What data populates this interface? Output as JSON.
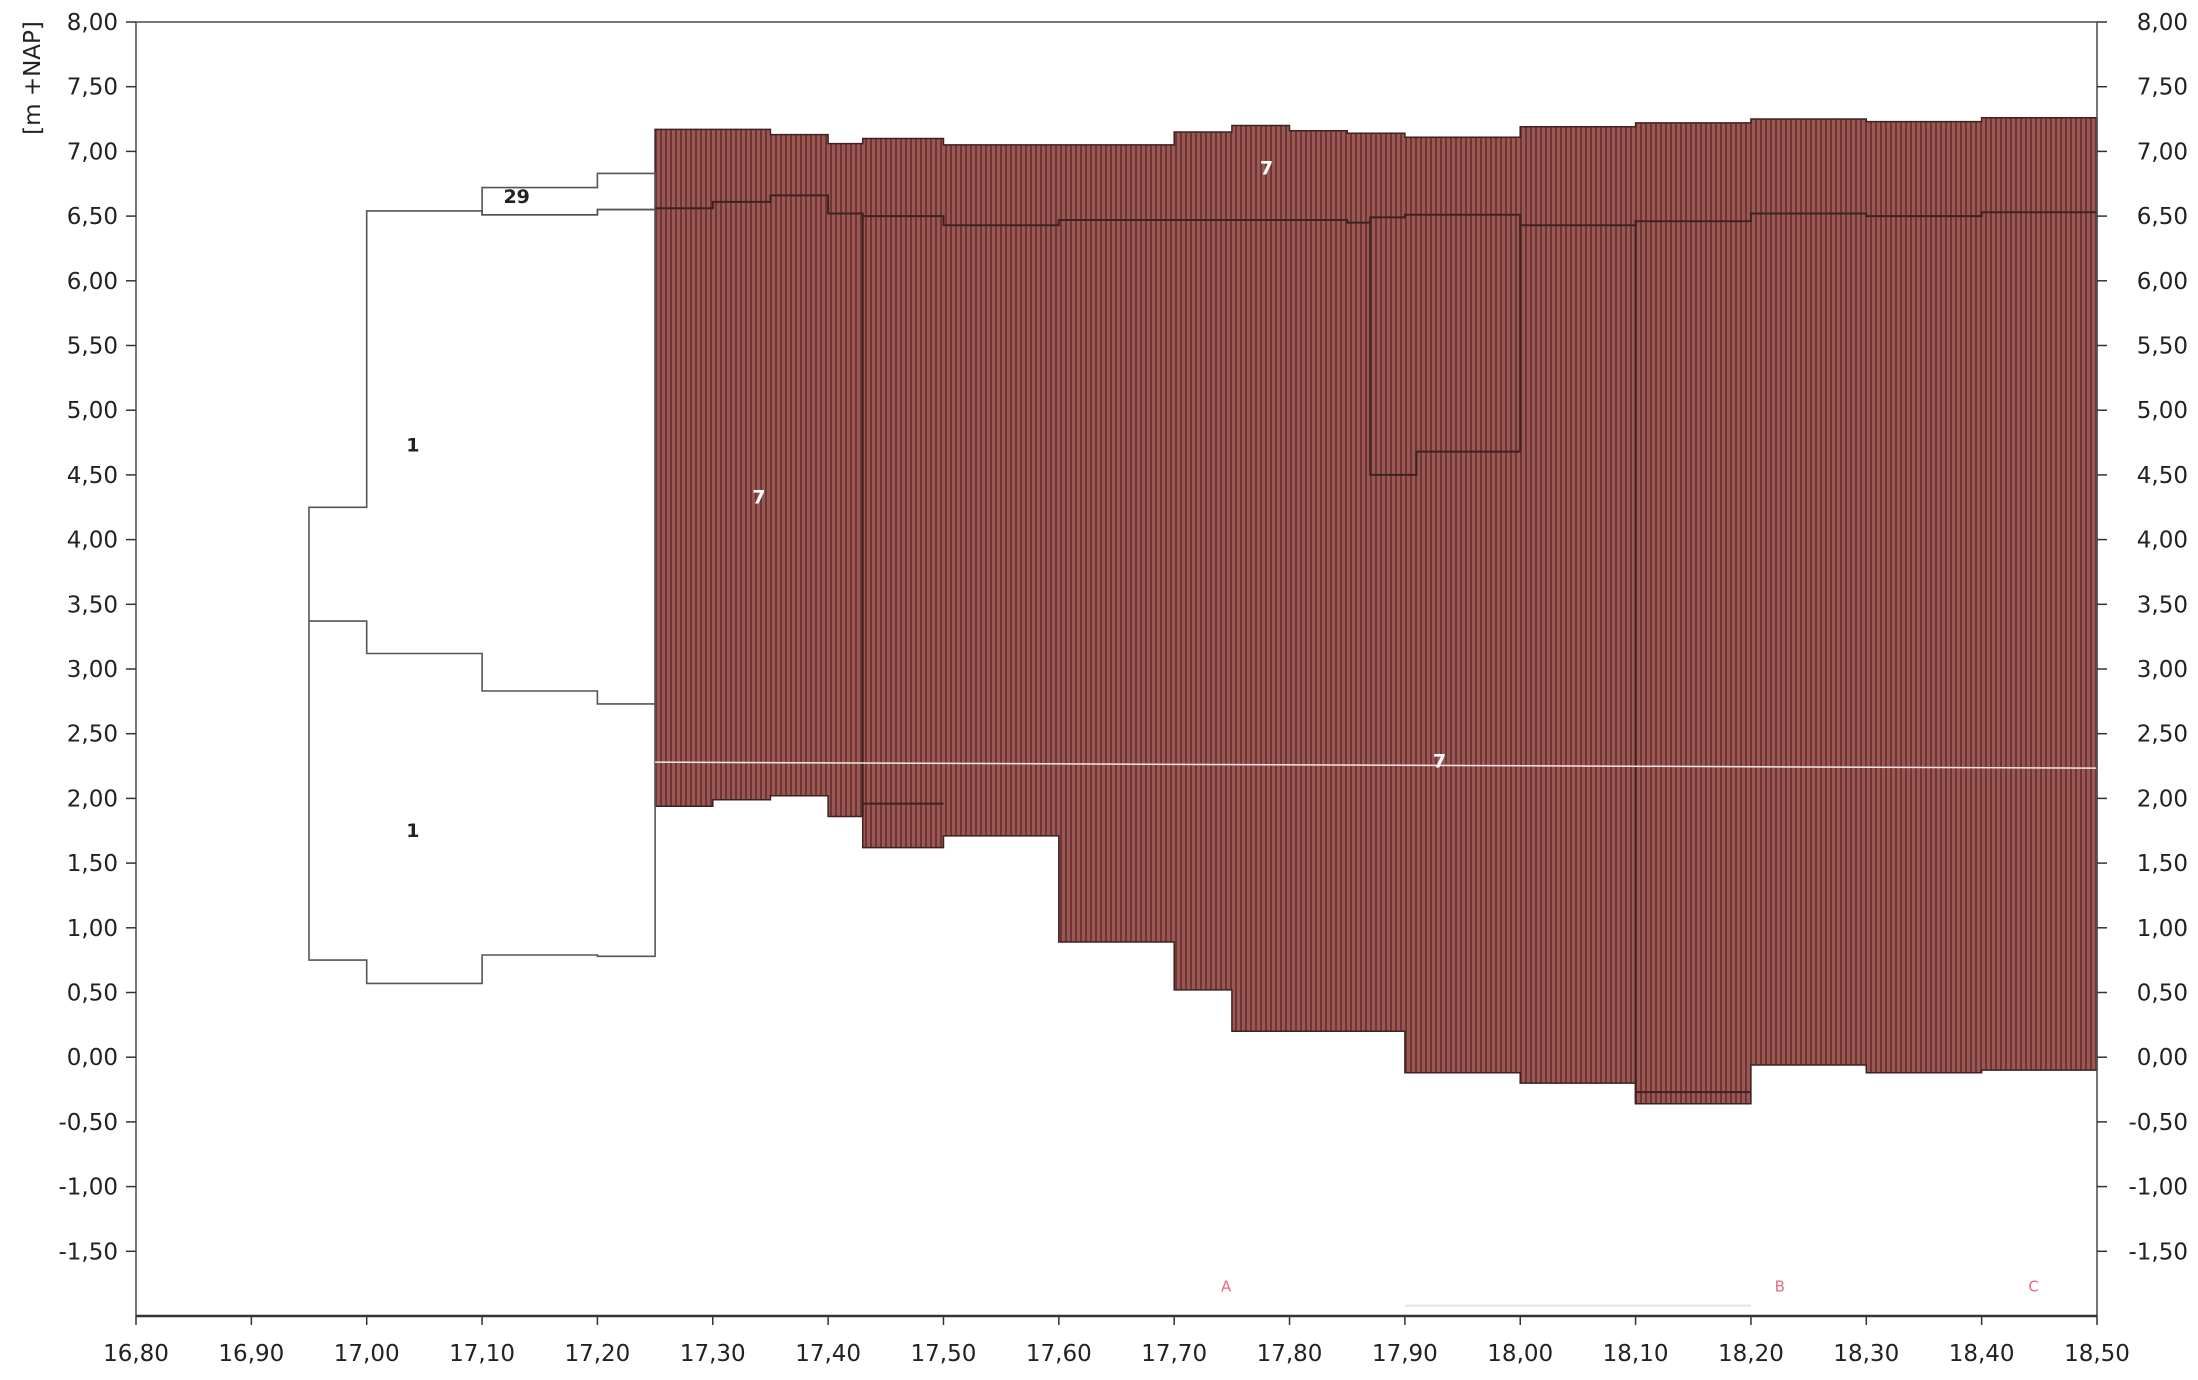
{
  "chart_data": {
    "type": "area",
    "title": "",
    "xlabel": "",
    "ylabel": "[m +NAP]",
    "xlim": [
      16.8,
      18.5
    ],
    "ylim": [
      -2.0,
      8.0
    ],
    "grid": false,
    "x_ticks": [
      "16,80",
      "16,90",
      "17,00",
      "17,10",
      "17,20",
      "17,30",
      "17,40",
      "17,50",
      "17,60",
      "17,70",
      "17,80",
      "17,90",
      "18,00",
      "18,10",
      "18,20",
      "18,30",
      "18,40",
      "18,50"
    ],
    "y_ticks": [
      "8,00",
      "7,50",
      "7,00",
      "6,50",
      "6,00",
      "5,50",
      "5,00",
      "4,50",
      "4,00",
      "3,50",
      "3,00",
      "2,50",
      "2,00",
      "1,50",
      "1,00",
      "0,50",
      "0,00",
      "-0,50",
      "-1,00",
      "-1,50"
    ],
    "colors": {
      "layer_7": "#8f4d4a",
      "layer_7_line": "#3d2222",
      "outline": "#555555",
      "marker": "#e86a7a",
      "axis": "#555555"
    },
    "series": [
      {
        "name": "7",
        "role": "filled",
        "top": [
          [
            17.25,
            7.17
          ],
          [
            17.3,
            7.17
          ],
          [
            17.35,
            7.13
          ],
          [
            17.4,
            7.06
          ],
          [
            17.43,
            7.1
          ],
          [
            17.5,
            7.05
          ],
          [
            17.6,
            7.05
          ],
          [
            17.7,
            7.15
          ],
          [
            17.75,
            7.2
          ],
          [
            17.8,
            7.16
          ],
          [
            17.85,
            7.14
          ],
          [
            17.9,
            7.11
          ],
          [
            17.95,
            7.11
          ],
          [
            18.0,
            7.19
          ],
          [
            18.05,
            7.19
          ],
          [
            18.1,
            7.22
          ],
          [
            18.2,
            7.25
          ],
          [
            18.3,
            7.23
          ],
          [
            18.4,
            7.26
          ],
          [
            18.5,
            7.26
          ]
        ],
        "bottom": [
          [
            17.25,
            1.94
          ],
          [
            17.3,
            1.99
          ],
          [
            17.35,
            2.02
          ],
          [
            17.4,
            1.86
          ],
          [
            17.43,
            1.62
          ],
          [
            17.5,
            1.71
          ],
          [
            17.6,
            0.89
          ],
          [
            17.7,
            0.52
          ],
          [
            17.75,
            0.2
          ],
          [
            17.8,
            0.2
          ],
          [
            17.85,
            0.2
          ],
          [
            17.9,
            -0.12
          ],
          [
            17.95,
            -0.12
          ],
          [
            18.0,
            -0.2
          ],
          [
            18.05,
            -0.2
          ],
          [
            18.1,
            -0.36
          ],
          [
            18.2,
            -0.06
          ],
          [
            18.3,
            -0.12
          ],
          [
            18.4,
            -0.1
          ],
          [
            18.5,
            -0.1
          ]
        ]
      },
      {
        "name": "1",
        "role": "outline",
        "top": [
          [
            16.95,
            4.25
          ],
          [
            17.0,
            6.54
          ],
          [
            17.05,
            6.54
          ],
          [
            17.1,
            6.51
          ],
          [
            17.15,
            6.51
          ],
          [
            17.2,
            6.55
          ],
          [
            17.25,
            6.55
          ]
        ],
        "bottom": [
          [
            16.95,
            0.75
          ],
          [
            17.0,
            0.57
          ],
          [
            17.05,
            0.57
          ],
          [
            17.1,
            0.79
          ],
          [
            17.15,
            0.79
          ],
          [
            17.2,
            0.78
          ],
          [
            17.25,
            0.78
          ]
        ],
        "divider": [
          [
            16.95,
            3.37
          ],
          [
            17.0,
            3.12
          ],
          [
            17.05,
            3.12
          ],
          [
            17.1,
            2.83
          ],
          [
            17.15,
            2.83
          ],
          [
            17.2,
            2.73
          ],
          [
            17.25,
            2.73
          ]
        ]
      },
      {
        "name": "29",
        "role": "outline",
        "top": [
          [
            17.1,
            6.72
          ],
          [
            17.2,
            6.83
          ],
          [
            17.25,
            6.83
          ]
        ],
        "bottom": [
          [
            17.1,
            6.51
          ],
          [
            17.2,
            6.55
          ],
          [
            17.25,
            6.55
          ]
        ]
      }
    ],
    "inner_lines": [
      {
        "points": [
          [
            17.25,
            6.56
          ],
          [
            17.3,
            6.56
          ],
          [
            17.3,
            6.61
          ],
          [
            17.35,
            6.61
          ],
          [
            17.35,
            6.66
          ],
          [
            17.4,
            6.66
          ],
          [
            17.4,
            6.52
          ],
          [
            17.43,
            6.52
          ],
          [
            17.43,
            6.5
          ],
          [
            17.5,
            6.5
          ],
          [
            17.5,
            6.43
          ],
          [
            17.6,
            6.43
          ],
          [
            17.6,
            6.47
          ],
          [
            17.85,
            6.47
          ],
          [
            17.85,
            6.45
          ],
          [
            17.87,
            6.45
          ],
          [
            17.87,
            6.49
          ],
          [
            17.9,
            6.49
          ],
          [
            17.9,
            6.51
          ],
          [
            18.0,
            6.51
          ],
          [
            18.0,
            6.43
          ],
          [
            18.1,
            6.43
          ],
          [
            18.1,
            6.46
          ],
          [
            18.2,
            6.46
          ],
          [
            18.2,
            6.52
          ],
          [
            18.3,
            6.52
          ],
          [
            18.3,
            6.5
          ],
          [
            18.4,
            6.5
          ],
          [
            18.4,
            6.53
          ],
          [
            18.5,
            6.53
          ]
        ]
      },
      {
        "points": [
          [
            17.87,
            6.47
          ],
          [
            17.87,
            4.5
          ],
          [
            17.91,
            4.5
          ],
          [
            17.91,
            4.68
          ],
          [
            18.0,
            4.68
          ],
          [
            18.0,
            6.47
          ]
        ]
      },
      {
        "points": [
          [
            17.43,
            6.5
          ],
          [
            17.43,
            1.86
          ]
        ]
      },
      {
        "points": [
          [
            17.43,
            1.96
          ],
          [
            17.5,
            1.96
          ]
        ]
      },
      {
        "points": [
          [
            18.1,
            6.47
          ],
          [
            18.1,
            -0.36
          ]
        ]
      },
      {
        "points": [
          [
            18.1,
            -0.27
          ],
          [
            18.2,
            -0.27
          ]
        ]
      }
    ],
    "band_line": 2.28,
    "labels": [
      {
        "text": "7",
        "x": 17.78,
        "y": 6.82,
        "color": "#ffffff"
      },
      {
        "text": "7",
        "x": 17.34,
        "y": 4.28,
        "color": "#ffffff"
      },
      {
        "text": "7",
        "x": 17.93,
        "y": 2.24,
        "color": "#ffffff"
      },
      {
        "text": "1",
        "x": 17.04,
        "y": 4.68,
        "color": "#222222"
      },
      {
        "text": "1",
        "x": 17.04,
        "y": 1.7,
        "color": "#222222"
      },
      {
        "text": "29",
        "x": 17.13,
        "y": 6.6,
        "color": "#222222"
      }
    ],
    "markers": [
      {
        "text": "A",
        "x": 17.745,
        "y": -1.81
      },
      {
        "text": "B",
        "x": 18.225,
        "y": -1.81
      },
      {
        "text": "C",
        "x": 18.445,
        "y": -1.81
      }
    ]
  }
}
